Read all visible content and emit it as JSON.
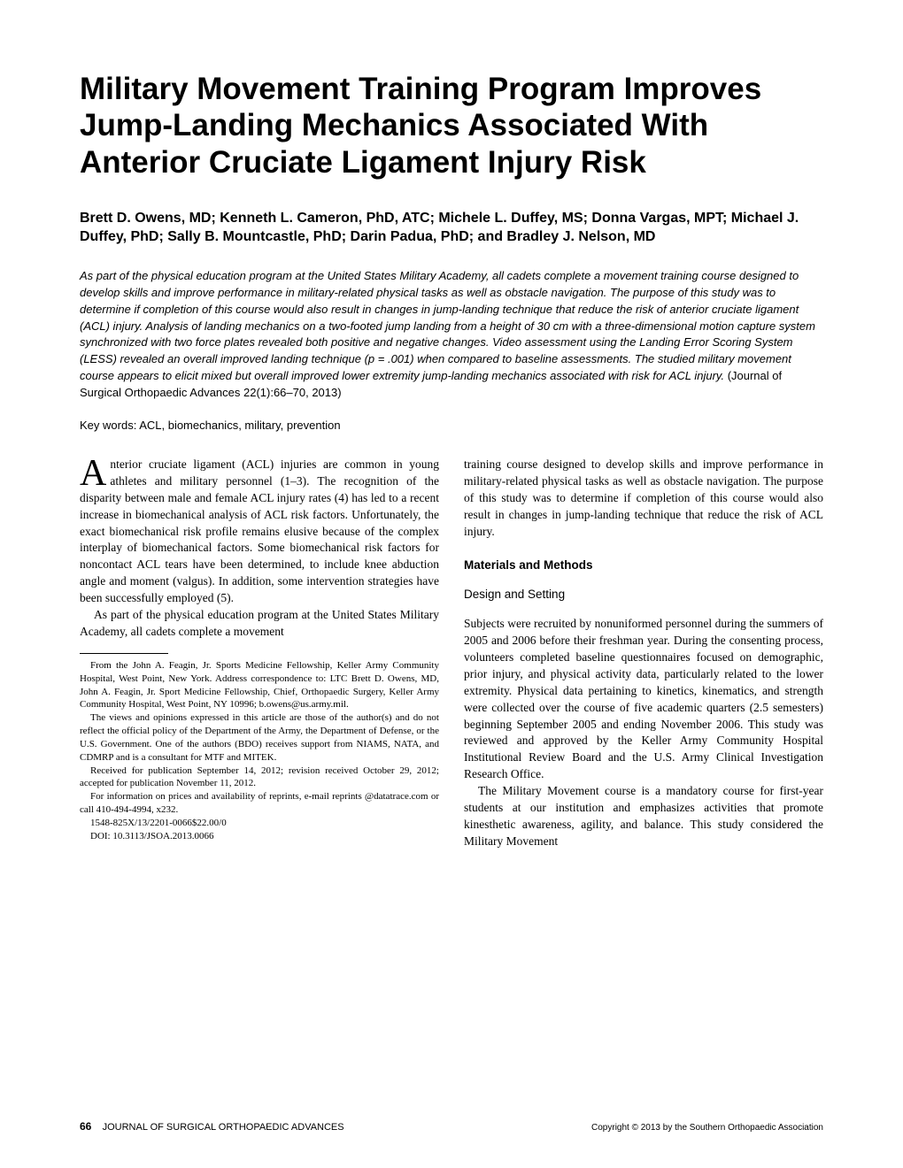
{
  "title": "Military Movement Training Program Improves Jump-Landing Mechanics Associated With Anterior Cruciate Ligament Injury Risk",
  "authors": "Brett D. Owens, MD; Kenneth L. Cameron, PhD, ATC; Michele L. Duffey, MS; Donna Vargas, MPT; Michael J. Duffey, PhD; Sally B. Mountcastle, PhD; Darin Padua, PhD; and Bradley J. Nelson, MD",
  "abstract": "As part of the physical education program at the United States Military Academy, all cadets complete a movement training course designed to develop skills and improve performance in military-related physical tasks as well as obstacle navigation. The purpose of this study was to determine if completion of this course would also result in changes in jump-landing technique that reduce the risk of anterior cruciate ligament (ACL) injury. Analysis of landing mechanics on a two-footed jump landing from a height of 30 cm with a three-dimensional motion capture system synchronized with two force plates revealed both positive and negative changes. Video assessment using the Landing Error Scoring System (LESS) revealed an overall improved landing technique (p = .001) when compared to baseline assessments. The studied military movement course appears to elicit mixed but overall improved lower extremity jump-landing mechanics associated with risk for ACL injury.",
  "citation": " (Journal of Surgical Orthopaedic Advances 22(1):66–70, 2013)",
  "keywords": "Key words: ACL, biomechanics, military, prevention",
  "dropcap": "A",
  "col1": {
    "p1": "nterior cruciate ligament (ACL) injuries are common in young athletes and military personnel (1–3). The recognition of the disparity between male and female ACL injury rates (4) has led to a recent increase in biomechanical analysis of ACL risk factors. Unfortunately, the exact biomechanical risk profile remains elusive because of the complex interplay of biomechanical factors. Some biomechanical risk factors for noncontact ACL tears have been determined, to include knee abduction angle and moment (valgus). In addition, some intervention strategies have been successfully employed (5).",
    "p2": "As part of the physical education program at the United States Military Academy, all cadets complete a movement"
  },
  "footnotes": {
    "f1": "From the John A. Feagin, Jr. Sports Medicine Fellowship, Keller Army Community Hospital, West Point, New York. Address correspondence to: LTC Brett D. Owens, MD, John A. Feagin, Jr. Sport Medicine Fellowship, Chief, Orthopaedic Surgery, Keller Army Community Hospital, West Point, NY 10996; b.owens@us.army.mil.",
    "f2": "The views and opinions expressed in this article are those of the author(s) and do not reflect the official policy of the Department of the Army, the Department of Defense, or the U.S. Government. One of the authors (BDO) receives support from NIAMS, NATA, and CDMRP and is a consultant for MTF and MITEK.",
    "f3": "Received for publication September 14, 2012; revision received October 29, 2012; accepted for publication November 11, 2012.",
    "f4": "For information on prices and availability of reprints, e-mail reprints @datatrace.com or call 410-494-4994, x232.",
    "f5": "1548-825X/13/2201-0066$22.00/0",
    "f6": "DOI: 10.3113/JSOA.2013.0066"
  },
  "col2": {
    "p1": "training course designed to develop skills and improve performance in military-related physical tasks as well as obstacle navigation. The purpose of this study was to determine if completion of this course would also result in changes in jump-landing technique that reduce the risk of ACL injury.",
    "h1": "Materials and Methods",
    "h2": "Design and Setting",
    "p2": "Subjects were recruited by nonuniformed personnel during the summers of 2005 and 2006 before their freshman year. During the consenting process, volunteers completed baseline questionnaires focused on demographic, prior injury, and physical activity data, particularly related to the lower extremity. Physical data pertaining to kinetics, kinematics, and strength were collected over the course of five academic quarters (2.5 semesters) beginning September 2005 and ending November 2006. This study was reviewed and approved by the Keller Army Community Hospital Institutional Review Board and the U.S. Army Clinical Investigation Research Office.",
    "p3": "The Military Movement course is a mandatory course for first-year students at our institution and emphasizes activities that promote kinesthetic awareness, agility, and balance. This study considered the Military Movement"
  },
  "footer": {
    "pagenum": "66",
    "journal": "JOURNAL OF SURGICAL ORTHOPAEDIC ADVANCES",
    "copyright": "Copyright © 2013 by the Southern Orthopaedic Association"
  }
}
